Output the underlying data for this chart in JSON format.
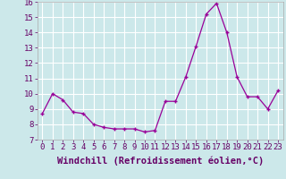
{
  "x": [
    0,
    1,
    2,
    3,
    4,
    5,
    6,
    7,
    8,
    9,
    10,
    11,
    12,
    13,
    14,
    15,
    16,
    17,
    18,
    19,
    20,
    21,
    22,
    23
  ],
  "y": [
    8.7,
    10.0,
    9.6,
    8.8,
    8.7,
    8.0,
    7.8,
    7.7,
    7.7,
    7.7,
    7.5,
    7.6,
    9.5,
    9.5,
    11.1,
    13.1,
    15.2,
    15.9,
    14.0,
    11.1,
    9.8,
    9.8,
    9.0,
    10.2
  ],
  "line_color": "#990099",
  "marker": "+",
  "xlabel": "Windchill (Refroidissement éolien,°C)",
  "xlabel_color": "#660066",
  "ylim": [
    7,
    16
  ],
  "yticks": [
    7,
    8,
    9,
    10,
    11,
    12,
    13,
    14,
    15,
    16
  ],
  "xticks": [
    0,
    1,
    2,
    3,
    4,
    5,
    6,
    7,
    8,
    9,
    10,
    11,
    12,
    13,
    14,
    15,
    16,
    17,
    18,
    19,
    20,
    21,
    22,
    23
  ],
  "background_color": "#cce8ea",
  "grid_color": "#ffffff",
  "tick_label_fontsize": 6.5,
  "xlabel_fontsize": 7.5
}
